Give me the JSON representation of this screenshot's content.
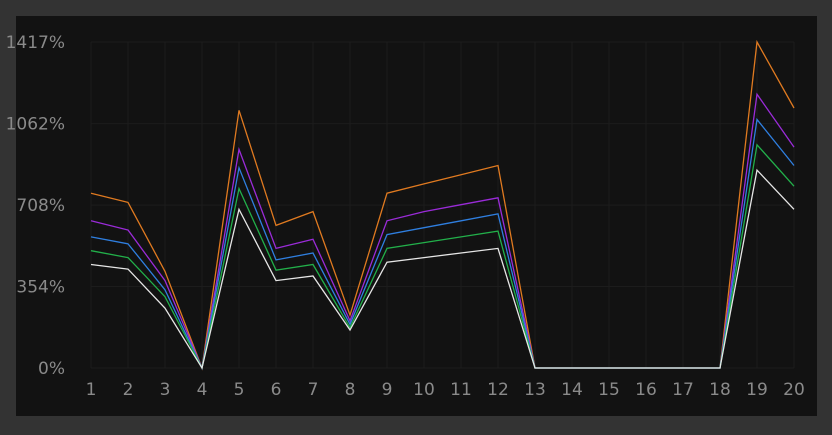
{
  "chart_data": {
    "type": "line",
    "title": "",
    "xlabel": "",
    "ylabel": "",
    "x": [
      1,
      2,
      3,
      4,
      5,
      6,
      7,
      8,
      9,
      10,
      11,
      12,
      13,
      14,
      15,
      16,
      17,
      18,
      19,
      20
    ],
    "x_tick_labels": [
      "1",
      "2",
      "3",
      "4",
      "5",
      "6",
      "7",
      "8",
      "9",
      "10",
      "11",
      "12",
      "13",
      "14",
      "15",
      "16",
      "17",
      "18",
      "19",
      "20"
    ],
    "y_ticks": [
      0,
      354,
      708,
      1062,
      1417
    ],
    "y_tick_labels": [
      "0%",
      "354%",
      "708%",
      "1062%",
      "1417%"
    ],
    "ylim": [
      0,
      1417
    ],
    "grid": true,
    "legend": false,
    "series": [
      {
        "color": "#e07a20",
        "values": [
          760,
          720,
          420,
          0,
          1120,
          620,
          680,
          230,
          760,
          800,
          840,
          880,
          0,
          0,
          0,
          0,
          0,
          0,
          1417,
          1130
        ]
      },
      {
        "color": "#9a2bd8",
        "values": [
          640,
          600,
          380,
          0,
          950,
          520,
          560,
          205,
          640,
          680,
          710,
          740,
          0,
          0,
          0,
          0,
          0,
          0,
          1190,
          960
        ]
      },
      {
        "color": "#2f7fe0",
        "values": [
          570,
          540,
          340,
          0,
          870,
          470,
          500,
          190,
          580,
          610,
          640,
          670,
          0,
          0,
          0,
          0,
          0,
          0,
          1080,
          880
        ]
      },
      {
        "color": "#22b04a",
        "values": [
          510,
          480,
          310,
          0,
          780,
          425,
          450,
          175,
          520,
          545,
          570,
          595,
          0,
          0,
          0,
          0,
          0,
          0,
          970,
          790
        ]
      },
      {
        "color": "#e6e6e6",
        "values": [
          450,
          430,
          260,
          0,
          690,
          380,
          400,
          165,
          460,
          480,
          500,
          520,
          0,
          0,
          0,
          0,
          0,
          0,
          860,
          690
        ]
      }
    ]
  },
  "style": {
    "background": "#333333",
    "panel_background": "#121212",
    "grid_color": "#1c1c1c",
    "tick_color": "#8a8a8a"
  }
}
